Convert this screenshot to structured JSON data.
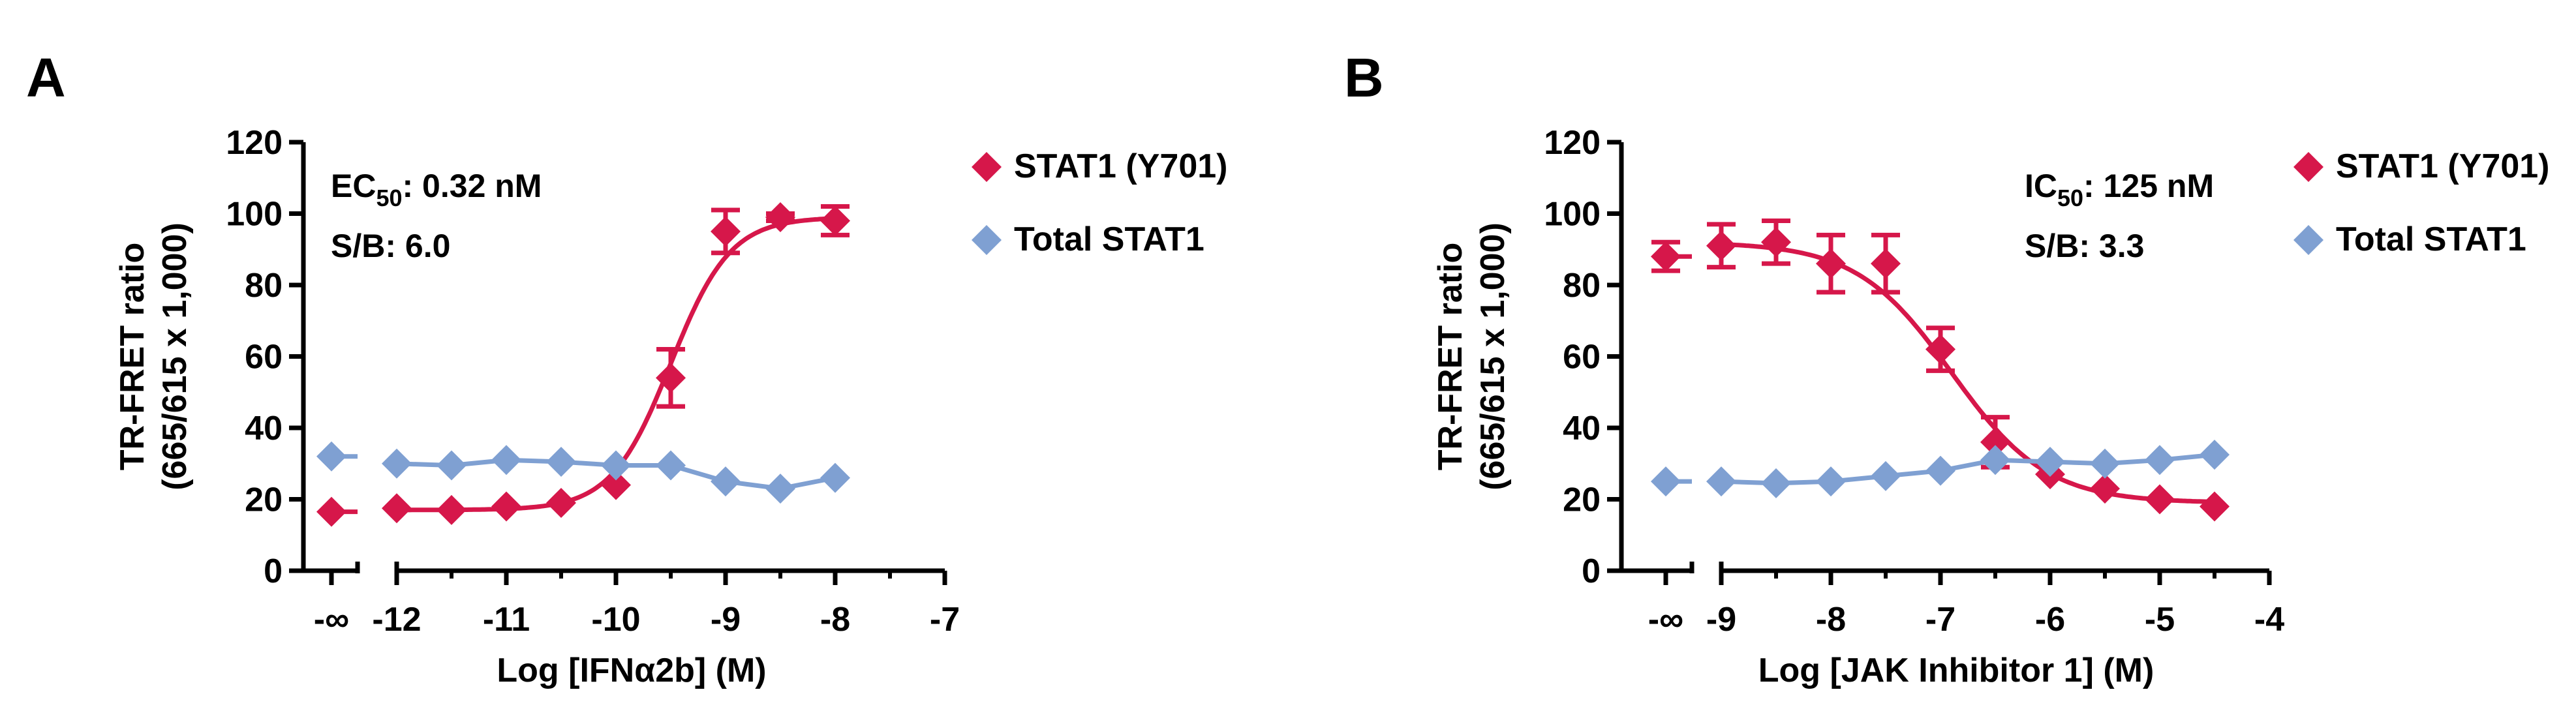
{
  "colors": {
    "phospho": "#D6174A",
    "total": "#7FA0D2",
    "axis": "#000000"
  },
  "chart_data": [
    {
      "type": "scatter",
      "panel_label": "A",
      "ylabel_line1": "TR-FRET ratio",
      "ylabel_line2": "(665/615 x 1,000)",
      "xlabel": "Log [IFNα2b] (M)",
      "ylim": [
        0,
        120
      ],
      "yticks": [
        0,
        20,
        40,
        60,
        80,
        100,
        120
      ],
      "xlim": [
        -12,
        -7
      ],
      "xticks": [
        -12,
        -11,
        -10,
        -9,
        -8,
        -7
      ],
      "neg_inf_label": "-∞",
      "annotations": [
        {
          "text": "EC",
          "sub": "50",
          "rest": ": 0.32 nM"
        },
        {
          "text": "S/B: 6.0"
        }
      ],
      "fit": {
        "kind": "increasing",
        "bottom": 17,
        "top": 99,
        "logmid": -9.5,
        "hill": 1.6
      },
      "series": [
        {
          "name": "STAT1 (Y701)",
          "color": "#D6174A",
          "control": {
            "y": 16.5,
            "err": 0
          },
          "points": [
            {
              "x": -12,
              "y": 17.5,
              "err": 0
            },
            {
              "x": -11.5,
              "y": 17,
              "err": 0
            },
            {
              "x": -11,
              "y": 18,
              "err": 0
            },
            {
              "x": -10.5,
              "y": 19,
              "err": 0
            },
            {
              "x": -10,
              "y": 24,
              "err": 0
            },
            {
              "x": -9.5,
              "y": 54,
              "err": 8
            },
            {
              "x": -9,
              "y": 95,
              "err": 6
            },
            {
              "x": -8.5,
              "y": 99,
              "err": 1
            },
            {
              "x": -8,
              "y": 98,
              "err": 4
            }
          ]
        },
        {
          "name": "Total STAT1",
          "color": "#7FA0D2",
          "control": {
            "y": 32,
            "err": 0
          },
          "points": [
            {
              "x": -12,
              "y": 30,
              "err": 0
            },
            {
              "x": -11.5,
              "y": 29.5,
              "err": 0
            },
            {
              "x": -11,
              "y": 31,
              "err": 0
            },
            {
              "x": -10.5,
              "y": 30.5,
              "err": 0
            },
            {
              "x": -10,
              "y": 29.5,
              "err": 0
            },
            {
              "x": -9.5,
              "y": 29.5,
              "err": 0
            },
            {
              "x": -9,
              "y": 25,
              "err": 0
            },
            {
              "x": -8.5,
              "y": 23,
              "err": 0
            },
            {
              "x": -8,
              "y": 26,
              "err": 0
            }
          ]
        }
      ]
    },
    {
      "type": "scatter",
      "panel_label": "B",
      "ylabel_line1": "TR-FRET ratio",
      "ylabel_line2": "(665/615 x 1,000)",
      "xlabel": "Log [JAK Inhibitor 1] (M)",
      "ylim": [
        0,
        120
      ],
      "yticks": [
        0,
        20,
        40,
        60,
        80,
        100,
        120
      ],
      "xlim": [
        -9,
        -4
      ],
      "xticks": [
        -9,
        -8,
        -7,
        -6,
        -5,
        -4
      ],
      "neg_inf_label": "-∞",
      "annotations": [
        {
          "text": "IC",
          "sub": "50",
          "rest": ": 125 nM"
        },
        {
          "text": "S/B: 3.3"
        }
      ],
      "fit": {
        "kind": "decreasing",
        "bottom": 19,
        "top": 92,
        "logmid": -6.9,
        "hill": 1.0
      },
      "series": [
        {
          "name": "STAT1 (Y701)",
          "color": "#D6174A",
          "control": {
            "y": 88,
            "err": 4
          },
          "points": [
            {
              "x": -9,
              "y": 91,
              "err": 6
            },
            {
              "x": -8.5,
              "y": 92,
              "err": 6
            },
            {
              "x": -8,
              "y": 86,
              "err": 8
            },
            {
              "x": -7.5,
              "y": 86,
              "err": 8
            },
            {
              "x": -7,
              "y": 62,
              "err": 6
            },
            {
              "x": -6.5,
              "y": 36,
              "err": 7
            },
            {
              "x": -6,
              "y": 27,
              "err": 0
            },
            {
              "x": -5.5,
              "y": 23,
              "err": 0
            },
            {
              "x": -5,
              "y": 20,
              "err": 0
            },
            {
              "x": -4.5,
              "y": 18,
              "err": 0
            }
          ]
        },
        {
          "name": "Total STAT1",
          "color": "#7FA0D2",
          "control": {
            "y": 25,
            "err": 0
          },
          "points": [
            {
              "x": -9,
              "y": 25,
              "err": 0
            },
            {
              "x": -8.5,
              "y": 24.5,
              "err": 0
            },
            {
              "x": -8,
              "y": 25,
              "err": 0
            },
            {
              "x": -7.5,
              "y": 26.5,
              "err": 0
            },
            {
              "x": -7,
              "y": 28,
              "err": 0
            },
            {
              "x": -6.5,
              "y": 31,
              "err": 0
            },
            {
              "x": -6,
              "y": 30.5,
              "err": 0
            },
            {
              "x": -5.5,
              "y": 30,
              "err": 0
            },
            {
              "x": -5,
              "y": 31,
              "err": 0
            },
            {
              "x": -4.5,
              "y": 32.5,
              "err": 0
            }
          ]
        }
      ]
    }
  ]
}
